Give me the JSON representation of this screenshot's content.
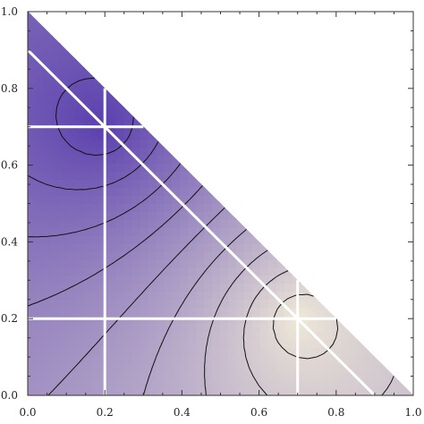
{
  "chart_data": {
    "type": "heatmap",
    "title": "",
    "xlabel": "",
    "ylabel": "",
    "xlim": [
      0,
      1
    ],
    "ylim": [
      0,
      1
    ],
    "domain": "triangle x >= 0, y >= 0, x + y <= 1",
    "x_ticks": [
      "0.0",
      "0.2",
      "0.4",
      "0.6",
      "0.8",
      "1.0"
    ],
    "y_ticks": [
      "0.0",
      "0.2",
      "0.4",
      "0.6",
      "0.8",
      "1.0"
    ],
    "colors": {
      "low": "#efe9d8",
      "high": "#5a3fae",
      "contour": "#111111",
      "grid_lines": "#ffffff"
    },
    "field_peaks": [
      {
        "x": 0.2,
        "y": 0.7,
        "level": "high"
      },
      {
        "x": 0.7,
        "y": 0.2,
        "level": "low"
      }
    ],
    "contour_count": 9,
    "white_lines": {
      "vertical_x": [
        0.2,
        0.7
      ],
      "horizontal_y": [
        0.2,
        0.7
      ],
      "diagonal_x_plus_y": [
        0.9
      ]
    }
  }
}
